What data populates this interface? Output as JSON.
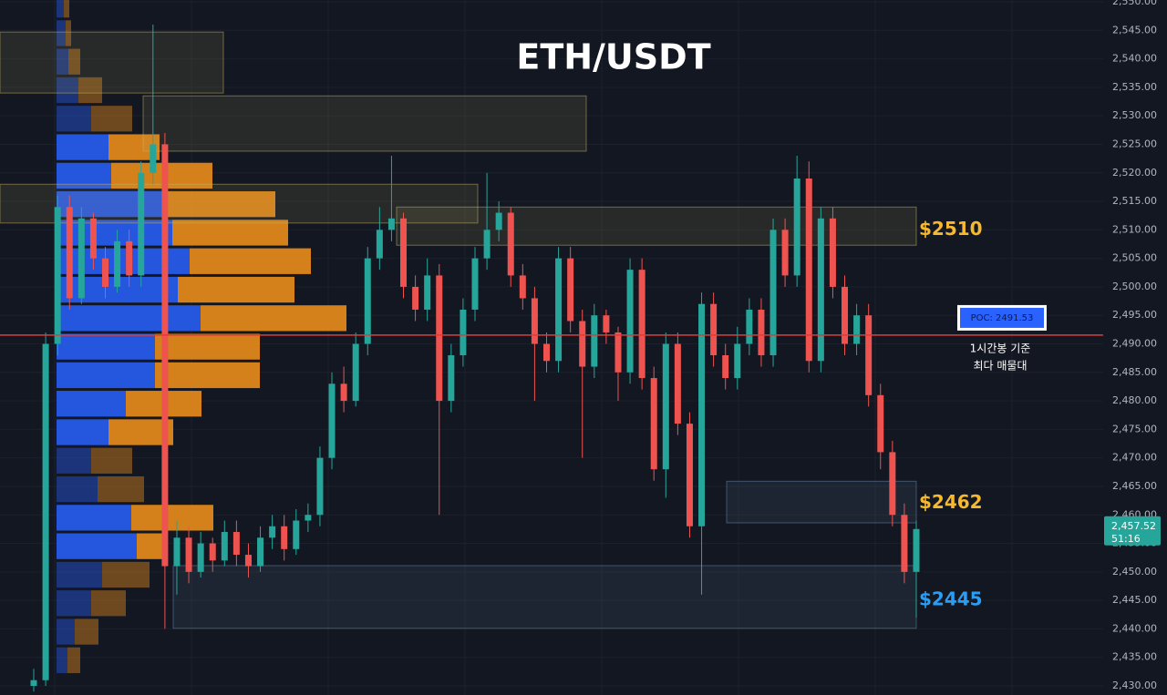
{
  "chart_data": {
    "type": "candlestick",
    "title": "ETH/USDT",
    "up_color": "#26a69a",
    "down_color": "#ef5350",
    "open": [
      2430,
      2431,
      2490,
      2514,
      2498,
      2512,
      2505,
      2500,
      2508,
      2502,
      2520,
      2525,
      2451,
      2456,
      2450,
      2455,
      2452,
      2457,
      2453,
      2451,
      2456,
      2458,
      2454,
      2459,
      2460,
      2470,
      2483,
      2480,
      2490,
      2505,
      2510,
      2512,
      2500,
      2496,
      2502,
      2480,
      2488,
      2496,
      2505,
      2510,
      2513,
      2502,
      2498,
      2490,
      2487,
      2505,
      2494,
      2486,
      2495,
      2492,
      2485,
      2503,
      2484,
      2468,
      2490,
      2476,
      2458,
      2497,
      2488,
      2484,
      2490,
      2496,
      2488,
      2510,
      2502,
      2519,
      2487,
      2512,
      2500,
      2490,
      2495,
      2481,
      2471,
      2460,
      2450
    ],
    "high": [
      2433,
      2492,
      2516,
      2516,
      2514,
      2513,
      2507,
      2510,
      2510,
      2522,
      2546,
      2527,
      2459,
      2458,
      2457,
      2456,
      2459,
      2459,
      2455,
      2458,
      2460,
      2460,
      2461,
      2462,
      2472,
      2485,
      2486,
      2492,
      2507,
      2514,
      2523,
      2513,
      2502,
      2505,
      2504,
      2490,
      2498,
      2507,
      2520,
      2515,
      2514,
      2504,
      2500,
      2492,
      2507,
      2507,
      2496,
      2497,
      2496,
      2493,
      2505,
      2505,
      2486,
      2492,
      2492,
      2478,
      2499,
      2499,
      2490,
      2493,
      2498,
      2498,
      2512,
      2512,
      2523,
      2522,
      2514,
      2514,
      2502,
      2497,
      2497,
      2483,
      2473,
      2462,
      2459
    ],
    "low": [
      2429,
      2430,
      2488,
      2496,
      2497,
      2503,
      2498,
      2499,
      2500,
      2500,
      2518,
      2440,
      2446,
      2448,
      2449,
      2450,
      2451,
      2451,
      2449,
      2450,
      2454,
      2452,
      2453,
      2457,
      2458,
      2468,
      2478,
      2479,
      2488,
      2503,
      2508,
      2498,
      2494,
      2494,
      2460,
      2478,
      2486,
      2494,
      2503,
      2508,
      2500,
      2496,
      2480,
      2485,
      2485,
      2492,
      2470,
      2484,
      2490,
      2480,
      2483,
      2482,
      2466,
      2463,
      2474,
      2456,
      2446,
      2486,
      2482,
      2482,
      2488,
      2486,
      2486,
      2500,
      2500,
      2485,
      2485,
      2498,
      2488,
      2488,
      2479,
      2468,
      2458,
      2448,
      2442
    ],
    "close": [
      2431,
      2490,
      2514,
      2498,
      2512,
      2505,
      2500,
      2508,
      2502,
      2520,
      2525,
      2451,
      2456,
      2450,
      2455,
      2452,
      2457,
      2453,
      2451,
      2456,
      2458,
      2454,
      2459,
      2460,
      2470,
      2483,
      2480,
      2490,
      2505,
      2510,
      2512,
      2500,
      2496,
      2502,
      2480,
      2488,
      2496,
      2505,
      2510,
      2513,
      2502,
      2498,
      2490,
      2487,
      2505,
      2494,
      2486,
      2495,
      2492,
      2485,
      2503,
      2484,
      2468,
      2490,
      2476,
      2458,
      2497,
      2488,
      2484,
      2490,
      2496,
      2488,
      2510,
      2502,
      2519,
      2487,
      2512,
      2500,
      2490,
      2495,
      2481,
      2471,
      2460,
      2450,
      2457.52
    ],
    "ylim": [
      2430,
      2551
    ],
    "yticks": [
      {
        "value": 2430,
        "label": "2,430.00"
      },
      {
        "value": 2435,
        "label": "2,435.00"
      },
      {
        "value": 2440,
        "label": "2,440.00"
      },
      {
        "value": 2445,
        "label": "2,445.00"
      },
      {
        "value": 2450,
        "label": "2,450.00"
      },
      {
        "value": 2455,
        "label": "2,455.00"
      },
      {
        "value": 2460,
        "label": "2,460.00"
      },
      {
        "value": 2465,
        "label": "2,465.00"
      },
      {
        "value": 2470,
        "label": "2,470.00"
      },
      {
        "value": 2475,
        "label": "2,475.00"
      },
      {
        "value": 2480,
        "label": "2,480.00"
      },
      {
        "value": 2485,
        "label": "2,485.00"
      },
      {
        "value": 2490,
        "label": "2,490.00"
      },
      {
        "value": 2495,
        "label": "2,495.00"
      },
      {
        "value": 2500,
        "label": "2,500.00"
      },
      {
        "value": 2505,
        "label": "2,505.00"
      },
      {
        "value": 2510,
        "label": "2,510.00"
      },
      {
        "value": 2515,
        "label": "2,515.00"
      },
      {
        "value": 2520,
        "label": "2,520.00"
      },
      {
        "value": 2525,
        "label": "2,525.00"
      },
      {
        "value": 2530,
        "label": "2,530.00"
      },
      {
        "value": 2535,
        "label": "2,535.00"
      },
      {
        "value": 2540,
        "label": "2,540.00"
      },
      {
        "value": 2545,
        "label": "2,545.00"
      },
      {
        "value": 2550,
        "label": "2,550.00"
      }
    ],
    "grid": true,
    "volume_profile": {
      "prices": [
        2432,
        2437,
        2442,
        2447,
        2452,
        2457,
        2462,
        2467,
        2472,
        2477,
        2482,
        2487,
        2492,
        2497,
        2502,
        2507,
        2512,
        2517,
        2522,
        2527,
        2532,
        2537,
        2542,
        2547
      ],
      "buy": [
        12,
        20,
        38,
        50,
        88,
        82,
        45,
        38,
        57,
        76,
        108,
        108,
        158,
        133,
        146,
        127,
        120,
        60,
        57,
        38,
        24,
        13,
        10,
        8
      ],
      "sell": [
        14,
        26,
        38,
        52,
        28,
        90,
        51,
        45,
        71,
        83,
        115,
        115,
        160,
        128,
        133,
        127,
        120,
        111,
        56,
        45,
        26,
        13,
        6,
        6
      ],
      "buy_color": "#2962ff",
      "sell_color": "#f7931a"
    },
    "zones": [
      {
        "low": 2534,
        "high": 2544.7,
        "color": "#c8b464"
      },
      {
        "low": 2523.8,
        "high": 2533.5,
        "color": "#c8b464"
      },
      {
        "low": 2511.2,
        "high": 2518,
        "color": "#c8b464"
      },
      {
        "low": 2507.3,
        "high": 2514,
        "color": "#c8b464"
      },
      {
        "low": 2458.6,
        "high": 2465.9,
        "color": "#6b8cae"
      },
      {
        "low": 2440.1,
        "high": 2451.1,
        "color": "#6b8cae"
      }
    ],
    "price_labels": [
      {
        "value": 2510,
        "label": "$2510",
        "color": "#f5b82e"
      },
      {
        "value": 2462,
        "label": "$2462",
        "color": "#f5b82e"
      },
      {
        "value": 2445,
        "label": "$2445",
        "color": "#2a9df4"
      }
    ],
    "poc": {
      "value": 2491.53,
      "label": "POC: 2491.53",
      "color": "#e53935"
    },
    "annotation": [
      "1시간봉 기준",
      "최다 매물대"
    ],
    "last_price": {
      "value": 2457.52,
      "label": "2,457.52"
    },
    "countdown": "51:16"
  }
}
